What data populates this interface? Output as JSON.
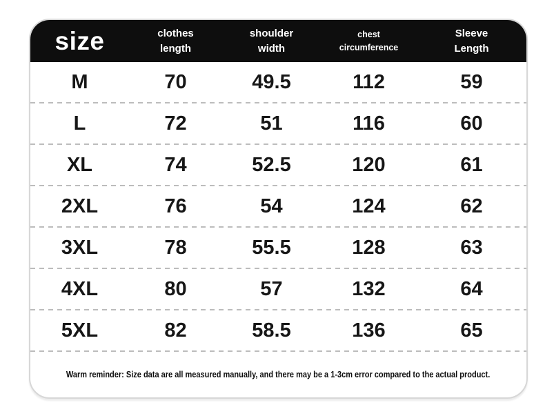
{
  "colors": {
    "page_bg": "#ffffff",
    "header_bg": "#0e0e0e",
    "header_text": "#ffffff",
    "body_text": "#161616",
    "divider": "#bcbcbc",
    "card_border": "#d7d7d7"
  },
  "header": {
    "size_label": "size",
    "columns": [
      {
        "line1": "clothes",
        "line2": "length"
      },
      {
        "line1": "shoulder",
        "line2": "width"
      },
      {
        "line1": "chest",
        "line2": "circumference"
      },
      {
        "line1": "Sleeve",
        "line2": "Length"
      }
    ]
  },
  "rows": [
    {
      "size": "M",
      "clothes_length": "70",
      "shoulder_width": "49.5",
      "chest_circumference": "112",
      "sleeve_length": "59"
    },
    {
      "size": "L",
      "clothes_length": "72",
      "shoulder_width": "51",
      "chest_circumference": "116",
      "sleeve_length": "60"
    },
    {
      "size": "XL",
      "clothes_length": "74",
      "shoulder_width": "52.5",
      "chest_circumference": "120",
      "sleeve_length": "61"
    },
    {
      "size": "2XL",
      "clothes_length": "76",
      "shoulder_width": "54",
      "chest_circumference": "124",
      "sleeve_length": "62"
    },
    {
      "size": "3XL",
      "clothes_length": "78",
      "shoulder_width": "55.5",
      "chest_circumference": "128",
      "sleeve_length": "63"
    },
    {
      "size": "4XL",
      "clothes_length": "80",
      "shoulder_width": "57",
      "chest_circumference": "132",
      "sleeve_length": "64"
    },
    {
      "size": "5XL",
      "clothes_length": "82",
      "shoulder_width": "58.5",
      "chest_circumference": "136",
      "sleeve_length": "65"
    }
  ],
  "footer": {
    "note": "Warm reminder: Size data are all measured manually, and there may be a 1-3cm error compared to the actual product."
  },
  "chart_data": {
    "type": "table",
    "title": "size",
    "columns": [
      "size",
      "clothes length",
      "shoulder width",
      "chest circumference",
      "Sleeve Length"
    ],
    "rows": [
      [
        "M",
        70,
        49.5,
        112,
        59
      ],
      [
        "L",
        72,
        51,
        116,
        60
      ],
      [
        "XL",
        74,
        52.5,
        120,
        61
      ],
      [
        "2XL",
        76,
        54,
        124,
        62
      ],
      [
        "3XL",
        78,
        55.5,
        128,
        63
      ],
      [
        "4XL",
        80,
        57,
        132,
        64
      ],
      [
        "5XL",
        82,
        58.5,
        136,
        65
      ]
    ],
    "footnote": "Warm reminder: Size data are all measured manually, and there may be a 1-3cm error compared to the actual product.",
    "units": "cm"
  }
}
